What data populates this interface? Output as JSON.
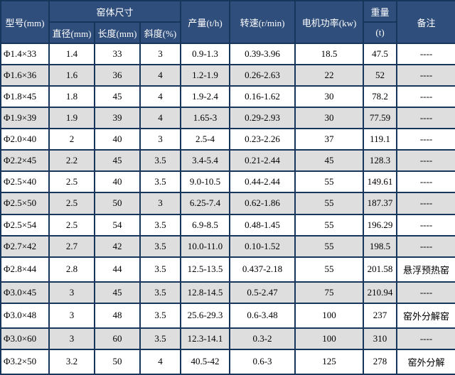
{
  "chart_data": {
    "type": "table",
    "header": {
      "model": "型号(mm)",
      "kiln_size": "窑体尺寸",
      "diameter": "直径(mm)",
      "length": "长度(mm)",
      "slope": "斜度(%)",
      "output": "产量(t/h)",
      "speed": "转速(r/min)",
      "power": "电机功率(kw)",
      "weight_top": "重量",
      "weight_unit": "(t)",
      "remark": "备注"
    },
    "column_keys": [
      "model",
      "diameter",
      "length",
      "slope",
      "output",
      "speed",
      "power",
      "weight",
      "remark"
    ],
    "rows": [
      [
        "Φ1.4×33",
        "1.4",
        "33",
        "3",
        "0.9-1.3",
        "0.39-3.96",
        "18.5",
        "47.5",
        "----"
      ],
      [
        "Φ1.6×36",
        "1.6",
        "36",
        "4",
        "1.2-1.9",
        "0.26-2.63",
        "22",
        "52",
        "----"
      ],
      [
        "Φ1.8×45",
        "1.8",
        "45",
        "4",
        "1.9-2.4",
        "0.16-1.62",
        "30",
        "78.2",
        "----"
      ],
      [
        "Φ1.9×39",
        "1.9",
        "39",
        "4",
        "1.65-3",
        "0.29-2.93",
        "30",
        "77.59",
        "----"
      ],
      [
        "Φ2.0×40",
        "2",
        "40",
        "3",
        "2.5-4",
        "0.23-2.26",
        "37",
        "119.1",
        "----"
      ],
      [
        "Φ2.2×45",
        "2.2",
        "45",
        "3.5",
        "3.4-5.4",
        "0.21-2.44",
        "45",
        "128.3",
        "----"
      ],
      [
        "Φ2.5×40",
        "2.5",
        "40",
        "3.5",
        "9.0-10.5",
        "0.44-2.44",
        "55",
        "149.61",
        "----"
      ],
      [
        "Φ2.5×50",
        "2.5",
        "50",
        "3",
        "6.25-7.4",
        "0.62-1.86",
        "55",
        "187.37",
        "----"
      ],
      [
        "Φ2.5×54",
        "2.5",
        "54",
        "3.5",
        "6.9-8.5",
        "0.48-1.45",
        "55",
        "196.29",
        "----"
      ],
      [
        "Φ2.7×42",
        "2.7",
        "42",
        "3.5",
        "10.0-11.0",
        "0.10-1.52",
        "55",
        "198.5",
        "----"
      ],
      [
        "Φ2.8×44",
        "2.8",
        "44",
        "3.5",
        "12.5-13.5",
        "0.437-2.18",
        "55",
        "201.58",
        "悬浮预热窑"
      ],
      [
        "Φ3.0×45",
        "3",
        "45",
        "3.5",
        "12.8-14.5",
        "0.5-2.47",
        "75",
        "210.94",
        "----"
      ],
      [
        "Φ3.0×48",
        "3",
        "48",
        "3.5",
        "25.6-29.3",
        "0.6-3.48",
        "100",
        "237",
        "窑外分解窑"
      ],
      [
        "Φ3.0×60",
        "3",
        "60",
        "3.5",
        "12.3-14.1",
        "0.3-2",
        "100",
        "310",
        "----"
      ],
      [
        "Φ3.2×50",
        "3.2",
        "50",
        "4",
        "40.5-42",
        "0.6-3",
        "125",
        "278",
        "窑外分解"
      ]
    ]
  },
  "colors": {
    "header_bg": "#2F4E7C",
    "grid": "#16365C",
    "row_alt": "#DEDEDE",
    "row_white": "#FFFFFF",
    "header_text": "#FFFFFF",
    "body_text": "#000000"
  }
}
